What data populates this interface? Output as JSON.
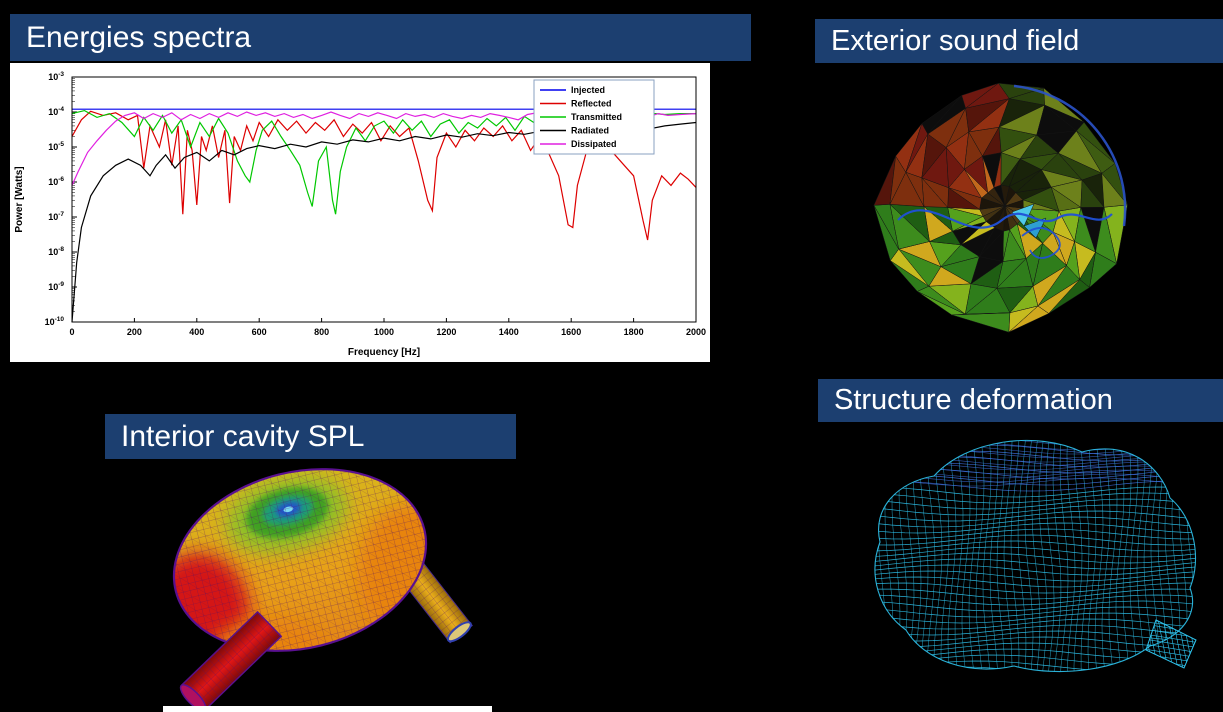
{
  "page": {
    "background": "#000000"
  },
  "accent_color": "#1c3f70",
  "panels": {
    "energies": {
      "title": "Energies spectra"
    },
    "exterior": {
      "title": "Exterior sound field"
    },
    "interior": {
      "title": "Interior cavity SPL"
    },
    "structure": {
      "title": "Structure deformation"
    }
  },
  "chart_data": {
    "type": "line",
    "title": "",
    "xlabel": "Frequency [Hz]",
    "ylabel": "Power [Watts]",
    "xlim": [
      0,
      2000
    ],
    "x_ticks": [
      0,
      200,
      400,
      600,
      800,
      1000,
      1200,
      1400,
      1600,
      1800,
      2000
    ],
    "ylog": true,
    "ylim": [
      1e-10,
      0.001
    ],
    "y_tick_exponents": [
      -3,
      -4,
      -5,
      -6,
      -7,
      -8,
      -9,
      -10
    ],
    "grid": false,
    "legend_position": "top-right",
    "series": [
      {
        "name": "Injected",
        "color": "#0000ee",
        "points": [
          [
            0,
            0.00012
          ],
          [
            2000,
            0.00012
          ]
        ]
      },
      {
        "name": "Reflected",
        "color": "#dd0000",
        "points": [
          [
            0,
            2e-05
          ],
          [
            30,
            6e-05
          ],
          [
            60,
            0.000105
          ],
          [
            100,
            8e-05
          ],
          [
            140,
            9.5e-05
          ],
          [
            180,
            6e-05
          ],
          [
            210,
            8e-05
          ],
          [
            230,
            2.5e-06
          ],
          [
            250,
            4e-05
          ],
          [
            280,
            1e-05
          ],
          [
            300,
            6e-05
          ],
          [
            320,
            3e-06
          ],
          [
            340,
            4e-05
          ],
          [
            355,
            1.2e-07
          ],
          [
            370,
            3e-05
          ],
          [
            385,
            8e-06
          ],
          [
            400,
            2.2e-07
          ],
          [
            415,
            2e-05
          ],
          [
            430,
            8e-06
          ],
          [
            450,
            4e-05
          ],
          [
            470,
            5e-06
          ],
          [
            490,
            3e-05
          ],
          [
            505,
            2.5e-07
          ],
          [
            520,
            2e-05
          ],
          [
            540,
            8e-06
          ],
          [
            560,
            4e-05
          ],
          [
            580,
            1.5e-05
          ],
          [
            600,
            5e-05
          ],
          [
            630,
            2e-05
          ],
          [
            660,
            6e-05
          ],
          [
            690,
            3e-05
          ],
          [
            720,
            5.5e-05
          ],
          [
            750,
            2.5e-05
          ],
          [
            780,
            5e-05
          ],
          [
            810,
            3e-05
          ],
          [
            840,
            6e-05
          ],
          [
            870,
            2e-05
          ],
          [
            900,
            4.5e-05
          ],
          [
            930,
            2.5e-05
          ],
          [
            960,
            5e-05
          ],
          [
            990,
            1.5e-05
          ],
          [
            1020,
            4e-05
          ],
          [
            1050,
            2e-05
          ],
          [
            1080,
            3.5e-05
          ],
          [
            1110,
            4e-06
          ],
          [
            1140,
            3e-07
          ],
          [
            1155,
            1.5e-07
          ],
          [
            1170,
            5e-06
          ],
          [
            1200,
            2.5e-05
          ],
          [
            1230,
            1e-05
          ],
          [
            1260,
            3e-05
          ],
          [
            1290,
            1.5e-05
          ],
          [
            1320,
            3.5e-05
          ],
          [
            1350,
            2e-05
          ],
          [
            1380,
            4e-05
          ],
          [
            1410,
            1.5e-05
          ],
          [
            1440,
            3e-05
          ],
          [
            1470,
            8e-06
          ],
          [
            1500,
            2e-05
          ],
          [
            1530,
            6e-06
          ],
          [
            1560,
            1.5e-06
          ],
          [
            1590,
            6e-08
          ],
          [
            1605,
            5e-08
          ],
          [
            1620,
            8e-07
          ],
          [
            1650,
            8e-06
          ],
          [
            1680,
            1.5e-05
          ],
          [
            1710,
            1e-05
          ],
          [
            1740,
            6e-06
          ],
          [
            1770,
            3e-06
          ],
          [
            1800,
            1.5e-06
          ],
          [
            1830,
            8e-08
          ],
          [
            1845,
            2.2e-08
          ],
          [
            1860,
            3e-07
          ],
          [
            1890,
            1.5e-06
          ],
          [
            1920,
            8e-07
          ],
          [
            1950,
            1.8e-06
          ],
          [
            1975,
            1.2e-06
          ],
          [
            2000,
            7e-07
          ]
        ]
      },
      {
        "name": "Transmitted",
        "color": "#00c800",
        "points": [
          [
            0,
            9e-05
          ],
          [
            40,
            0.00011
          ],
          [
            80,
            7e-05
          ],
          [
            120,
            9e-05
          ],
          [
            160,
            5e-05
          ],
          [
            200,
            2e-05
          ],
          [
            230,
            7e-05
          ],
          [
            260,
            3e-05
          ],
          [
            290,
            8e-05
          ],
          [
            320,
            2.5e-05
          ],
          [
            350,
            6e-05
          ],
          [
            380,
            1e-05
          ],
          [
            410,
            5e-05
          ],
          [
            440,
            2e-05
          ],
          [
            470,
            6.5e-05
          ],
          [
            500,
            2.5e-05
          ],
          [
            530,
            4e-06
          ],
          [
            555,
            1.5e-06
          ],
          [
            570,
            1e-06
          ],
          [
            590,
            8e-06
          ],
          [
            610,
            3e-05
          ],
          [
            640,
            5.5e-05
          ],
          [
            670,
            2e-05
          ],
          [
            700,
            8e-06
          ],
          [
            730,
            3e-06
          ],
          [
            755,
            5e-07
          ],
          [
            770,
            2e-07
          ],
          [
            790,
            4e-06
          ],
          [
            815,
            1e-05
          ],
          [
            835,
            3e-07
          ],
          [
            845,
            1.2e-07
          ],
          [
            860,
            2e-06
          ],
          [
            880,
            1e-05
          ],
          [
            910,
            3.5e-05
          ],
          [
            940,
            1.5e-05
          ],
          [
            970,
            4e-05
          ],
          [
            1000,
            5.5e-05
          ],
          [
            1030,
            2.5e-05
          ],
          [
            1060,
            6e-05
          ],
          [
            1090,
            3e-05
          ],
          [
            1120,
            5.5e-05
          ],
          [
            1150,
            2e-05
          ],
          [
            1180,
            4.5e-05
          ],
          [
            1210,
            6e-05
          ],
          [
            1240,
            2.5e-05
          ],
          [
            1270,
            5e-05
          ],
          [
            1300,
            3.5e-05
          ],
          [
            1330,
            6.5e-05
          ],
          [
            1360,
            4e-05
          ],
          [
            1390,
            7e-05
          ],
          [
            1420,
            3e-05
          ],
          [
            1450,
            7.5e-05
          ],
          [
            1480,
            5e-05
          ],
          [
            1510,
            8.5e-05
          ],
          [
            1540,
            6e-05
          ],
          [
            1570,
            9e-05
          ],
          [
            1600,
            6.5e-05
          ],
          [
            1630,
            8e-05
          ],
          [
            1660,
            7e-05
          ],
          [
            1690,
            8.5e-05
          ],
          [
            1720,
            7.5e-05
          ],
          [
            1750,
            9e-05
          ],
          [
            1780,
            8e-05
          ],
          [
            1810,
            9e-05
          ],
          [
            1840,
            8.5e-05
          ],
          [
            1870,
            9e-05
          ],
          [
            1900,
            8.5e-05
          ],
          [
            1950,
            9e-05
          ],
          [
            2000,
            9e-05
          ]
        ]
      },
      {
        "name": "Radiated",
        "color": "#000000",
        "points": [
          [
            0,
            1e-10
          ],
          [
            15,
            5e-09
          ],
          [
            30,
            5e-08
          ],
          [
            60,
            4e-07
          ],
          [
            100,
            1.5e-06
          ],
          [
            140,
            3e-06
          ],
          [
            180,
            4.5e-06
          ],
          [
            220,
            3e-06
          ],
          [
            250,
            1.5e-06
          ],
          [
            270,
            3e-06
          ],
          [
            300,
            6e-06
          ],
          [
            330,
            2.5e-06
          ],
          [
            360,
            5e-06
          ],
          [
            400,
            7e-06
          ],
          [
            440,
            4e-06
          ],
          [
            480,
            8e-06
          ],
          [
            520,
            6e-06
          ],
          [
            560,
            9e-06
          ],
          [
            600,
            1.1e-05
          ],
          [
            650,
            9e-06
          ],
          [
            700,
            1.2e-05
          ],
          [
            750,
            1e-05
          ],
          [
            800,
            1.4e-05
          ],
          [
            850,
            1.2e-05
          ],
          [
            900,
            1.6e-05
          ],
          [
            950,
            1.4e-05
          ],
          [
            1000,
            1.8e-05
          ],
          [
            1050,
            1.5e-05
          ],
          [
            1100,
            2e-05
          ],
          [
            1150,
            1.7e-05
          ],
          [
            1200,
            2.2e-05
          ],
          [
            1250,
            1.9e-05
          ],
          [
            1300,
            2.4e-05
          ],
          [
            1350,
            2.1e-05
          ],
          [
            1400,
            2.6e-05
          ],
          [
            1450,
            2.3e-05
          ],
          [
            1500,
            2.8e-05
          ],
          [
            1550,
            2.5e-05
          ],
          [
            1600,
            3e-05
          ],
          [
            1650,
            2.7e-05
          ],
          [
            1700,
            3.2e-05
          ],
          [
            1750,
            3e-05
          ],
          [
            1800,
            3.6e-05
          ],
          [
            1850,
            3.3e-05
          ],
          [
            1900,
            4e-05
          ],
          [
            1950,
            4.5e-05
          ],
          [
            2000,
            5e-05
          ]
        ]
      },
      {
        "name": "Dissipated",
        "color": "#e020e0",
        "points": [
          [
            0,
            8e-07
          ],
          [
            20,
            2e-06
          ],
          [
            50,
            7e-06
          ],
          [
            80,
            1.5e-05
          ],
          [
            110,
            3e-05
          ],
          [
            140,
            5.5e-05
          ],
          [
            170,
            8e-05
          ],
          [
            200,
            9.5e-05
          ],
          [
            230,
            6.5e-05
          ],
          [
            260,
            9e-05
          ],
          [
            290,
            7e-05
          ],
          [
            320,
            9.5e-05
          ],
          [
            350,
            6e-05
          ],
          [
            380,
            8.5e-05
          ],
          [
            410,
            6.5e-05
          ],
          [
            440,
            9e-05
          ],
          [
            470,
            7e-05
          ],
          [
            500,
            9.5e-05
          ],
          [
            530,
            7.5e-05
          ],
          [
            560,
            0.0001
          ],
          [
            590,
            8e-05
          ],
          [
            620,
            9.5e-05
          ],
          [
            650,
            7.5e-05
          ],
          [
            680,
            9e-05
          ],
          [
            710,
            7e-05
          ],
          [
            740,
            8.5e-05
          ],
          [
            770,
            6.5e-05
          ],
          [
            800,
            8e-05
          ],
          [
            830,
            0.0001
          ],
          [
            860,
            8e-05
          ],
          [
            890,
            6.5e-05
          ],
          [
            920,
            9e-05
          ],
          [
            950,
            7.5e-05
          ],
          [
            980,
            9.5e-05
          ],
          [
            1010,
            8e-05
          ],
          [
            1040,
            6.5e-05
          ],
          [
            1070,
            9e-05
          ],
          [
            1100,
            7.5e-05
          ],
          [
            1130,
            8.5e-05
          ],
          [
            1160,
            7e-05
          ],
          [
            1190,
            9e-05
          ],
          [
            1220,
            7.5e-05
          ],
          [
            1250,
            6.5e-05
          ],
          [
            1280,
            8e-05
          ],
          [
            1310,
            7e-05
          ],
          [
            1340,
            9e-05
          ],
          [
            1370,
            8e-05
          ],
          [
            1400,
            7e-05
          ],
          [
            1430,
            6e-05
          ],
          [
            1460,
            8.5e-05
          ],
          [
            1490,
            9.5e-05
          ],
          [
            1520,
            8e-05
          ],
          [
            1550,
            0.0001
          ],
          [
            1580,
            8.5e-05
          ],
          [
            1610,
            9e-05
          ],
          [
            1640,
            7.5e-05
          ],
          [
            1670,
            8.5e-05
          ],
          [
            1700,
            7e-05
          ],
          [
            1730,
            8e-05
          ],
          [
            1760,
            9e-05
          ],
          [
            1790,
            8e-05
          ],
          [
            1820,
            8.5e-05
          ],
          [
            1850,
            7.5e-05
          ],
          [
            1880,
            9e-05
          ],
          [
            1910,
            8e-05
          ],
          [
            1950,
            8.5e-05
          ],
          [
            2000,
            9e-05
          ]
        ]
      }
    ]
  },
  "graphics": {
    "exterior": {
      "palette_upper_left": [
        "#6f1810",
        "#933012",
        "#ad4b16",
        "#7e2f0e",
        "#c2681c",
        "#55150b"
      ],
      "palette_upper_right": [
        "#2a420e",
        "#3e5c12",
        "#586f15",
        "#19230a",
        "#6d811b",
        "#33500f"
      ],
      "palette_lower": [
        "#2f7d1b",
        "#55a11d",
        "#84b31d",
        "#c6bb1f",
        "#3d8c1d",
        "#1f5e13",
        "#d0a81e"
      ],
      "palette_center": [
        "#1c150a",
        "#34240f",
        "#413112",
        "#241a0b",
        "#503a14"
      ],
      "black": "#0d0d0d",
      "cyan": "#4ec9e8",
      "cyan2": "#2e9fd0",
      "accent_blue": "#2050d8",
      "outline_blue": "#2a52c8",
      "edge": "#141414"
    },
    "interior": {
      "body_top": "#cfc01e",
      "body_mid": "#e8a018",
      "body_low": "#e07414",
      "patch_red": "#d41414",
      "patch_orange": "#e88410",
      "ring_green_outer": "#8fc026",
      "ring_green": "#3fa021",
      "ring_teal": "#1f9e78",
      "ring_blue": "#2253cc",
      "ring_cyan": "#79d9f2",
      "mesh": "rgba(88,22,104,0.40)",
      "mesh_light": "rgba(88,22,104,0.22)",
      "outline": "#5a1090",
      "pipe_red": "#e01616",
      "pipe_red_dark": "#7c0909",
      "pipe_yellow": "#ecb01c",
      "pipe_yellow_dark": "#97690a",
      "pipe_edge": "#44309a",
      "cap_red": "#b01060",
      "cap_yellow": "#ddc878",
      "cap_blue": "#3040b0"
    },
    "structure": {
      "line": "#2fc4ee",
      "top": "#3d6cd8"
    }
  }
}
